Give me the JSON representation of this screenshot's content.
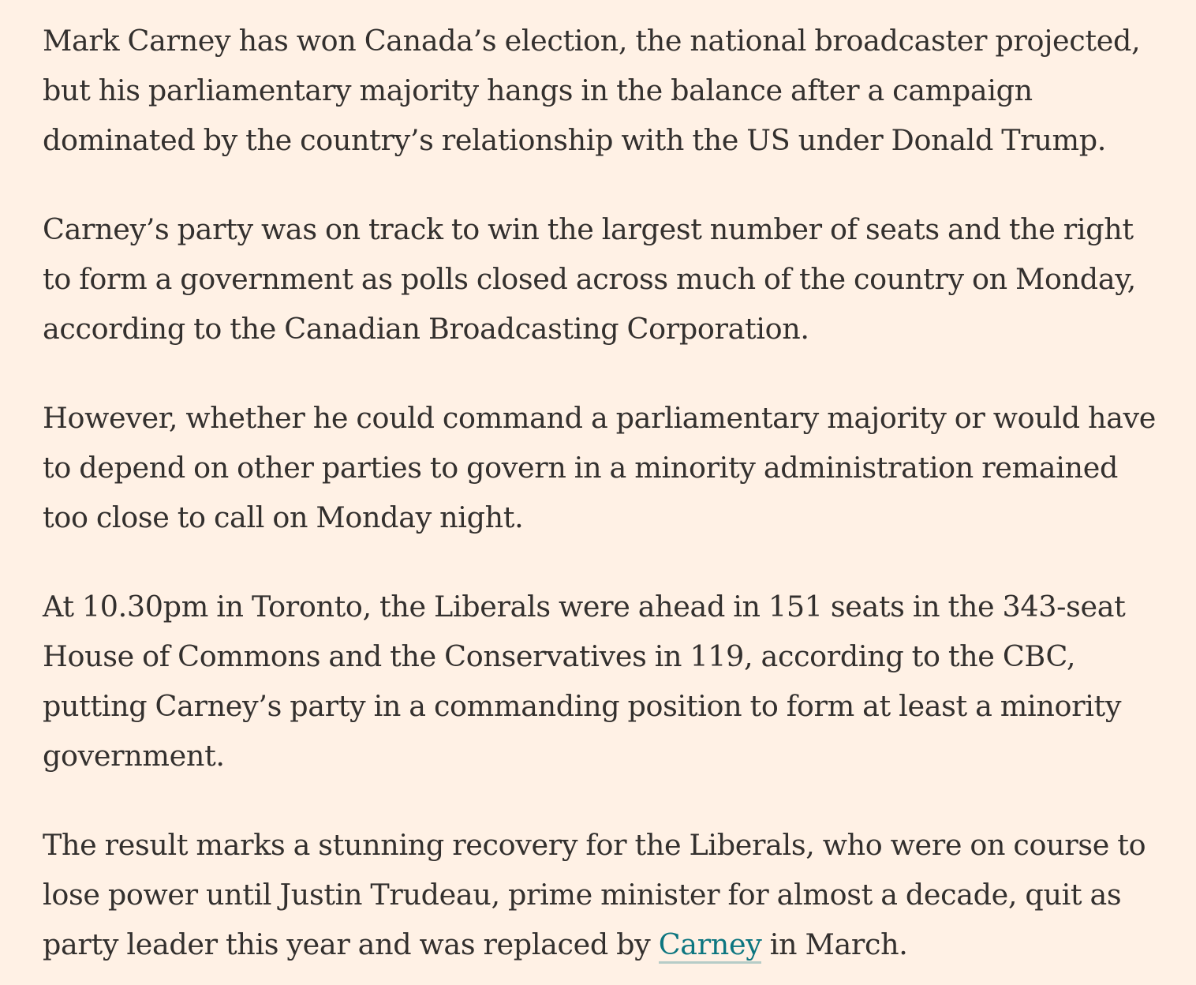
{
  "article": {
    "paragraphs": [
      "Mark Carney has won Canada’s election, the national broadcaster projected, but his parliamentary majority hangs in the balance after a campaign dominated by the country’s relationship with the US under Donald Trump.",
      "Carney’s party was on track to win the largest number of seats and the right to form a government as polls closed across much of the country on Monday, according to the Canadian Broadcasting Corporation.",
      "However, whether he could command a parliamentary majority or would have to depend on other parties to govern in a minority administration remained too close to call on Monday night.",
      "At 10.30pm in Toronto, the Liberals were ahead in 151 seats in the 343-seat House of Commons and the Conservatives in 119, according to the CBC, putting Carney’s party in a commanding position to form at least a minority government."
    ],
    "last_paragraph": {
      "before_link": "The result marks a stunning recovery for the Liberals, who were on course to lose power until Justin Trudeau, prime minister for almost a decade, quit as party leader this year and was replaced by ",
      "link_text": "Carney",
      "after_link": " in March."
    }
  },
  "colors": {
    "background": "#FFF1E5",
    "text": "#33302E",
    "link": "#0D7680"
  }
}
